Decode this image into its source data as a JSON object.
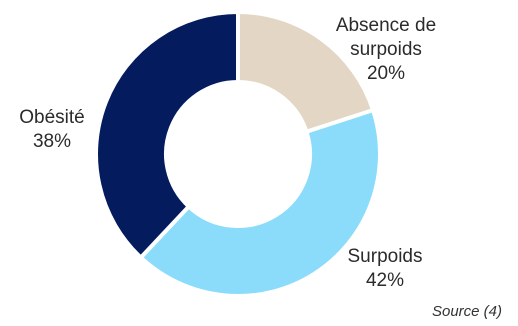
{
  "chart_data": {
    "type": "pie",
    "title": "",
    "donut": true,
    "legend": "none",
    "slices": [
      {
        "label_lines": [
          "Absence de",
          "surpoids"
        ],
        "value": 20,
        "value_text": "20%",
        "color": "#e3d6c4"
      },
      {
        "label_lines": [
          "Surpoids"
        ],
        "value": 42,
        "value_text": "42%",
        "color": "#8bdcfb"
      },
      {
        "label_lines": [
          "Obésité"
        ],
        "value": 38,
        "value_text": "38%",
        "color": "#041c5e"
      }
    ]
  },
  "source": "Source (4)"
}
